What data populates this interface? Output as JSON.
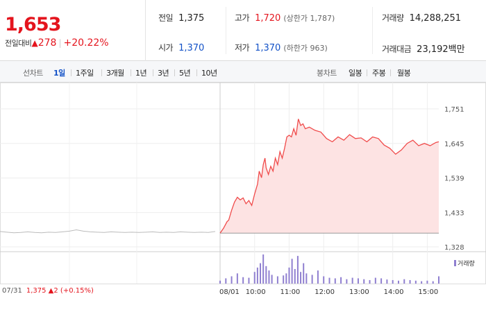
{
  "summary": {
    "price": "1,653",
    "change_label": "전일대비",
    "change_arrow": "▲",
    "change_value": "278",
    "change_rate": "+20.22%",
    "prev_close_label": "전일",
    "prev_close": "1,375",
    "high_label": "고가",
    "high": "1,720",
    "upper_limit": "(상한가 1,787)",
    "volume_label": "거래량",
    "volume": "14,288,251",
    "open_label": "시가",
    "open": "1,370",
    "low_label": "저가",
    "low": "1,370",
    "lower_limit": "(하한가 963)",
    "amount_label": "거래대금",
    "amount": "23,192",
    "amount_unit": "백만"
  },
  "toolbar": {
    "line_label": "선차트",
    "periods": [
      "1일",
      "1주일",
      "3개월",
      "1년",
      "3년",
      "5년",
      "10년"
    ],
    "active_period": "1일",
    "candle_label": "봉차트",
    "candles": [
      "일봉",
      "주봉",
      "월봉"
    ]
  },
  "colors": {
    "up": "#e4141d",
    "down": "#1251c7",
    "line": "#f04b4b",
    "area": "#fde3e3",
    "prev_line": "#bbbbbb",
    "volume": "#8f7fd0"
  },
  "footer": {
    "date": "07/31",
    "price": "1,375",
    "arrow": "▲",
    "change": "2",
    "rate": "(+0.15%)"
  },
  "volume_legend": "거래량",
  "chart_data": {
    "type": "line",
    "title": "",
    "xlabel": "",
    "ylabel": "",
    "y_ticks": [
      1328,
      1433,
      1539,
      1645,
      1751
    ],
    "y_tick_labels": [
      "1,328",
      "1,433",
      "1,539",
      "1,645",
      "1,751"
    ],
    "ylim": [
      1328,
      1751
    ],
    "x_ticks": [
      "08/01",
      "10:00",
      "11:00",
      "12:00",
      "13:00",
      "14:00",
      "15:00"
    ],
    "grid": true,
    "previous_day": {
      "date": "07/31",
      "x": [
        0,
        10,
        20,
        30,
        40,
        50,
        60,
        70,
        80,
        90,
        100,
        110,
        120,
        130,
        140,
        150,
        160,
        170,
        180,
        190,
        200,
        210,
        220,
        230,
        240,
        250,
        260,
        270,
        280,
        290,
        300,
        310
      ],
      "values": [
        1375,
        1373,
        1371,
        1372,
        1374,
        1372,
        1371,
        1373,
        1372,
        1374,
        1376,
        1380,
        1376,
        1374,
        1373,
        1372,
        1374,
        1373,
        1372,
        1373,
        1372,
        1373,
        1374,
        1372,
        1373,
        1372,
        1374,
        1373,
        1372,
        1373,
        1372,
        1375
      ]
    },
    "today": {
      "time": [
        "09:00",
        "09:06",
        "09:12",
        "09:15",
        "09:20",
        "09:25",
        "09:30",
        "09:35",
        "09:40",
        "09:45",
        "09:50",
        "09:55",
        "10:00",
        "10:05",
        "10:08",
        "10:12",
        "10:15",
        "10:18",
        "10:20",
        "10:24",
        "10:28",
        "10:32",
        "10:36",
        "10:40",
        "10:44",
        "10:48",
        "10:52",
        "10:56",
        "11:00",
        "11:04",
        "11:08",
        "11:12",
        "11:16",
        "11:20",
        "11:24",
        "11:28",
        "11:35",
        "11:45",
        "11:55",
        "12:05",
        "12:15",
        "12:25",
        "12:35",
        "12:45",
        "12:55",
        "13:05",
        "13:15",
        "13:25",
        "13:35",
        "13:45",
        "13:55",
        "14:05",
        "14:15",
        "14:25",
        "14:35",
        "14:45",
        "14:55",
        "15:05",
        "15:15",
        "15:20"
      ],
      "values": [
        1370,
        1385,
        1405,
        1410,
        1440,
        1465,
        1480,
        1472,
        1478,
        1460,
        1470,
        1455,
        1490,
        1520,
        1560,
        1540,
        1580,
        1600,
        1570,
        1550,
        1575,
        1560,
        1600,
        1580,
        1620,
        1600,
        1630,
        1665,
        1670,
        1665,
        1690,
        1670,
        1720,
        1700,
        1705,
        1690,
        1695,
        1685,
        1680,
        1660,
        1650,
        1665,
        1655,
        1672,
        1660,
        1662,
        1650,
        1665,
        1660,
        1640,
        1630,
        1612,
        1625,
        1645,
        1655,
        1638,
        1645,
        1638,
        1648,
        1650
      ]
    },
    "volume": {
      "label": "거래량",
      "time": [
        "09:00",
        "09:10",
        "09:20",
        "09:30",
        "09:40",
        "09:50",
        "10:00",
        "10:05",
        "10:10",
        "10:15",
        "10:20",
        "10:25",
        "10:30",
        "10:40",
        "10:50",
        "10:55",
        "11:00",
        "11:05",
        "11:10",
        "11:15",
        "11:20",
        "11:25",
        "11:30",
        "11:40",
        "11:50",
        "12:00",
        "12:10",
        "12:20",
        "12:30",
        "12:40",
        "12:50",
        "13:00",
        "13:10",
        "13:20",
        "13:30",
        "13:40",
        "13:50",
        "14:00",
        "14:10",
        "14:20",
        "14:30",
        "14:40",
        "14:50",
        "15:00",
        "15:10",
        "15:20"
      ],
      "values": [
        10,
        18,
        25,
        35,
        22,
        20,
        40,
        55,
        70,
        100,
        60,
        45,
        30,
        25,
        28,
        35,
        55,
        85,
        50,
        95,
        40,
        70,
        35,
        30,
        45,
        25,
        20,
        18,
        22,
        15,
        20,
        18,
        15,
        12,
        20,
        18,
        14,
        12,
        10,
        15,
        12,
        10,
        8,
        10,
        8,
        25
      ]
    }
  }
}
